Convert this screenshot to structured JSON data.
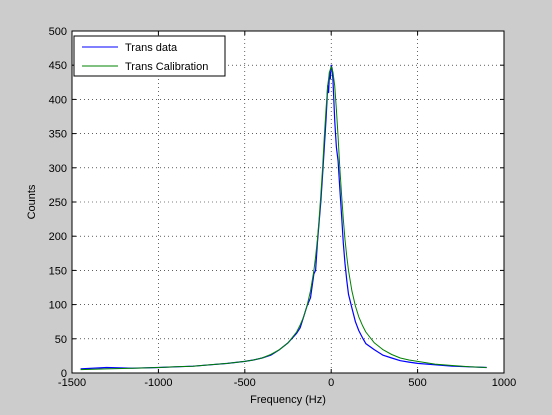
{
  "chart_data": {
    "type": "line",
    "title": "",
    "xlabel": "Frequency (Hz)",
    "ylabel": "Counts",
    "xlim": [
      -1500,
      1000
    ],
    "ylim": [
      0,
      500
    ],
    "xticks": [
      -1500,
      -1000,
      -500,
      0,
      500,
      1000
    ],
    "yticks": [
      0,
      50,
      100,
      150,
      200,
      250,
      300,
      350,
      400,
      450,
      500
    ],
    "grid": true,
    "grid_style": "dotted",
    "legend_position": "top-left",
    "series": [
      {
        "name": "Trans data",
        "color": "#0000ff",
        "x": [
          -1450,
          -1300,
          -1150,
          -1000,
          -900,
          -800,
          -700,
          -600,
          -500,
          -450,
          -400,
          -350,
          -300,
          -250,
          -200,
          -180,
          -160,
          -140,
          -120,
          -100,
          -90,
          -80,
          -70,
          -60,
          -50,
          -40,
          -30,
          -25,
          -20,
          -15,
          -10,
          -5,
          0,
          5,
          10,
          15,
          20,
          25,
          30,
          40,
          50,
          60,
          70,
          80,
          90,
          100,
          120,
          140,
          160,
          180,
          200,
          250,
          300,
          350,
          400,
          450,
          500,
          600,
          700,
          800,
          900
        ],
        "y": [
          6,
          8,
          7,
          8,
          9,
          10,
          12,
          14,
          17,
          19,
          22,
          26,
          34,
          44,
          58,
          66,
          82,
          98,
          110,
          145,
          150,
          190,
          220,
          250,
          290,
          330,
          370,
          395,
          420,
          410,
          440,
          430,
          450,
          445,
          430,
          400,
          370,
          350,
          330,
          310,
          270,
          230,
          190,
          160,
          135,
          115,
          95,
          75,
          62,
          52,
          43,
          34,
          26,
          22,
          18,
          16,
          14,
          12,
          10,
          9,
          8
        ]
      },
      {
        "name": "Trans Calibration",
        "color": "#008000",
        "x": [
          -1450,
          -1300,
          -1150,
          -1000,
          -900,
          -800,
          -700,
          -600,
          -500,
          -450,
          -400,
          -350,
          -300,
          -250,
          -200,
          -180,
          -160,
          -140,
          -120,
          -100,
          -90,
          -80,
          -70,
          -60,
          -50,
          -40,
          -30,
          -20,
          -10,
          0,
          10,
          20,
          30,
          40,
          50,
          60,
          70,
          80,
          90,
          100,
          120,
          140,
          160,
          180,
          200,
          250,
          300,
          350,
          400,
          450,
          500,
          600,
          700,
          800,
          900
        ],
        "y": [
          5,
          6,
          7,
          8,
          9,
          10,
          12,
          14,
          17,
          19,
          22,
          27,
          34,
          44,
          60,
          70,
          82,
          98,
          120,
          150,
          170,
          195,
          225,
          260,
          300,
          345,
          385,
          420,
          440,
          448,
          440,
          420,
          385,
          345,
          300,
          260,
          225,
          195,
          170,
          150,
          120,
          98,
          82,
          70,
          60,
          44,
          34,
          27,
          22,
          19,
          17,
          13,
          11,
          9,
          8
        ]
      }
    ]
  }
}
